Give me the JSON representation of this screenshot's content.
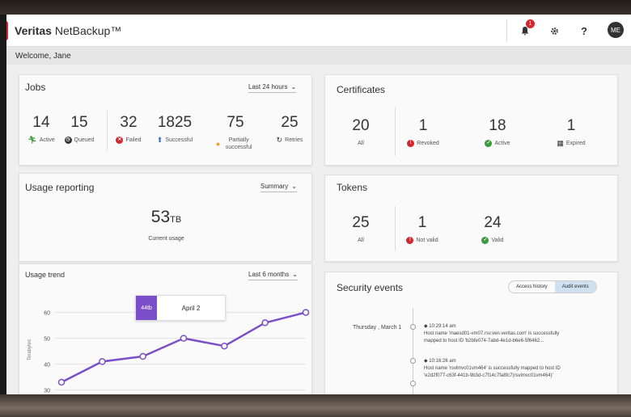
{
  "header": {
    "brand_bold": "Veritas",
    "brand_rest": " NetBackup™",
    "notification_count": "1",
    "avatar_initials": "ME",
    "icons": [
      "bell-icon",
      "gear-icon",
      "help-icon"
    ]
  },
  "welcome": "Welcome, Jane",
  "jobs": {
    "title": "Jobs",
    "range": "Last 24 hours",
    "stats": [
      {
        "value": "14",
        "label": "Active",
        "icon": "running-icon"
      },
      {
        "value": "15",
        "label": "Queued",
        "icon": "clock-icon"
      },
      {
        "value": "32",
        "label": "Failed",
        "icon": "error-icon"
      },
      {
        "value": "1825",
        "label": "Successful",
        "icon": "success-arrow-icon"
      },
      {
        "value": "75",
        "label": "Partially successful",
        "icon": "partial-icon"
      },
      {
        "value": "25",
        "label": "Retries",
        "icon": "retry-icon"
      }
    ]
  },
  "certificates": {
    "title": "Certificates",
    "stats": [
      {
        "value": "20",
        "label": "All"
      },
      {
        "value": "1",
        "label": "Revoked",
        "icon": "error-icon"
      },
      {
        "value": "18",
        "label": "Active",
        "icon": "check-icon"
      },
      {
        "value": "1",
        "label": "Expired",
        "icon": "calendar-icon"
      }
    ]
  },
  "usage": {
    "title": "Usage reporting",
    "view": "Summary",
    "value": "53",
    "unit": "TB",
    "label": "Current usage"
  },
  "tokens": {
    "title": "Tokens",
    "stats": [
      {
        "value": "25",
        "label": "All"
      },
      {
        "value": "1",
        "label": "Not valid",
        "icon": "error-icon"
      },
      {
        "value": "24",
        "label": "Valid",
        "icon": "check-icon"
      }
    ]
  },
  "usage_trend": {
    "title": "Usage trend",
    "range": "Last 6 months",
    "tooltip_value": "44tb",
    "tooltip_label": "April 2"
  },
  "chart_data": {
    "type": "line",
    "x": [
      1,
      2,
      3,
      4,
      5,
      6,
      7
    ],
    "values": [
      33,
      41,
      43,
      50,
      47,
      56,
      60
    ],
    "ylabel": "Terabytes",
    "yticks": [
      "60",
      "50",
      "40",
      "30"
    ],
    "ylim": [
      28,
      63
    ],
    "color": "#7b4fc9"
  },
  "security": {
    "title": "Security events",
    "toggle": [
      "Access history",
      "Audit events"
    ],
    "date": "Thursday , March 1",
    "events": [
      {
        "time": "10:29:14 am",
        "text": [
          "Host name 'maesd01-vm07.rsv.ven.veritas.com' is successfully",
          "mapped to host ID 'b2bfe074-7abd-4e1d-b6e6-5f6462..."
        ]
      },
      {
        "time": "10:16:26 am",
        "text": [
          "Host name 'rsvlmvc01vm464' is successfully mapped to host ID",
          "'e2d2f077-c63f-441b-9b3d-c7f14c7fa8fc7(rsvlmvc01vm464)'"
        ]
      }
    ]
  }
}
